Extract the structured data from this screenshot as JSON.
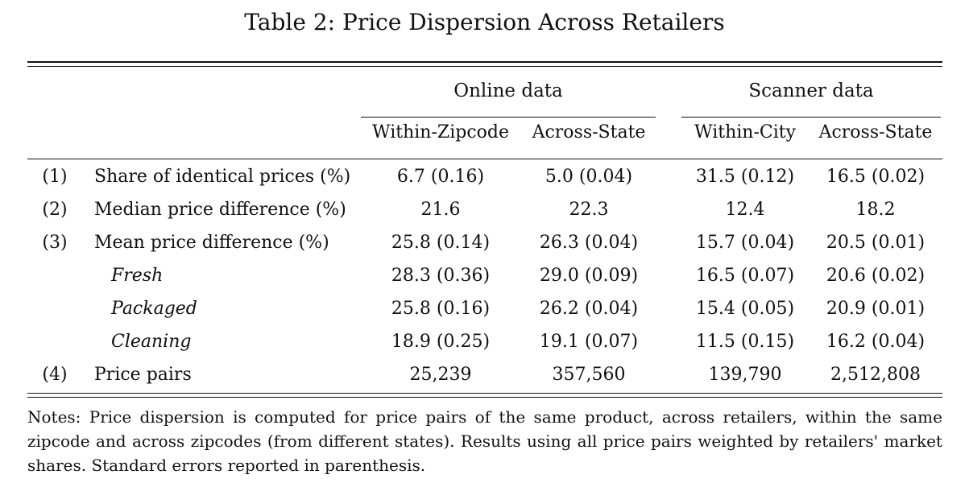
{
  "table": {
    "title": "Table 2: Price Dispersion Across Retailers",
    "groups": {
      "online": "Online data",
      "scanner": "Scanner data"
    },
    "columns": {
      "online_within": "Within-Zipcode",
      "online_across": "Across-State",
      "scanner_within": "Within-City",
      "scanner_across": "Across-State"
    },
    "rows": [
      {
        "num": "(1)",
        "label": "Share of identical prices (%)",
        "sub": false,
        "values": [
          "6.7 (0.16)",
          "5.0 (0.04)",
          "31.5 (0.12)",
          "16.5 (0.02)"
        ]
      },
      {
        "num": "(2)",
        "label": "Median price difference (%)",
        "sub": false,
        "values": [
          "21.6",
          "22.3",
          "12.4",
          "18.2"
        ]
      },
      {
        "num": "(3)",
        "label": "Mean price difference (%)",
        "sub": false,
        "values": [
          "25.8 (0.14)",
          "26.3 (0.04)",
          "15.7 (0.04)",
          "20.5 (0.01)"
        ]
      },
      {
        "num": "",
        "label": "Fresh",
        "sub": true,
        "values": [
          "28.3 (0.36)",
          "29.0 (0.09)",
          "16.5 (0.07)",
          "20.6 (0.02)"
        ]
      },
      {
        "num": "",
        "label": "Packaged",
        "sub": true,
        "values": [
          "25.8 (0.16)",
          "26.2 (0.04)",
          "15.4 (0.05)",
          "20.9 (0.01)"
        ]
      },
      {
        "num": "",
        "label": "Cleaning",
        "sub": true,
        "values": [
          "18.9 (0.25)",
          "19.1 (0.07)",
          "11.5 (0.15)",
          "16.2 (0.04)"
        ]
      },
      {
        "num": "(4)",
        "label": "Price pairs",
        "sub": false,
        "values": [
          "25,239",
          "357,560",
          "139,790",
          "2,512,808"
        ]
      }
    ],
    "notes": "Notes: Price dispersion is computed for price pairs of the same product, across retailers, within the same zipcode and across zipcodes (from different states). Results using all price pairs weighted by retailers' market shares. Standard errors reported in parenthesis."
  }
}
